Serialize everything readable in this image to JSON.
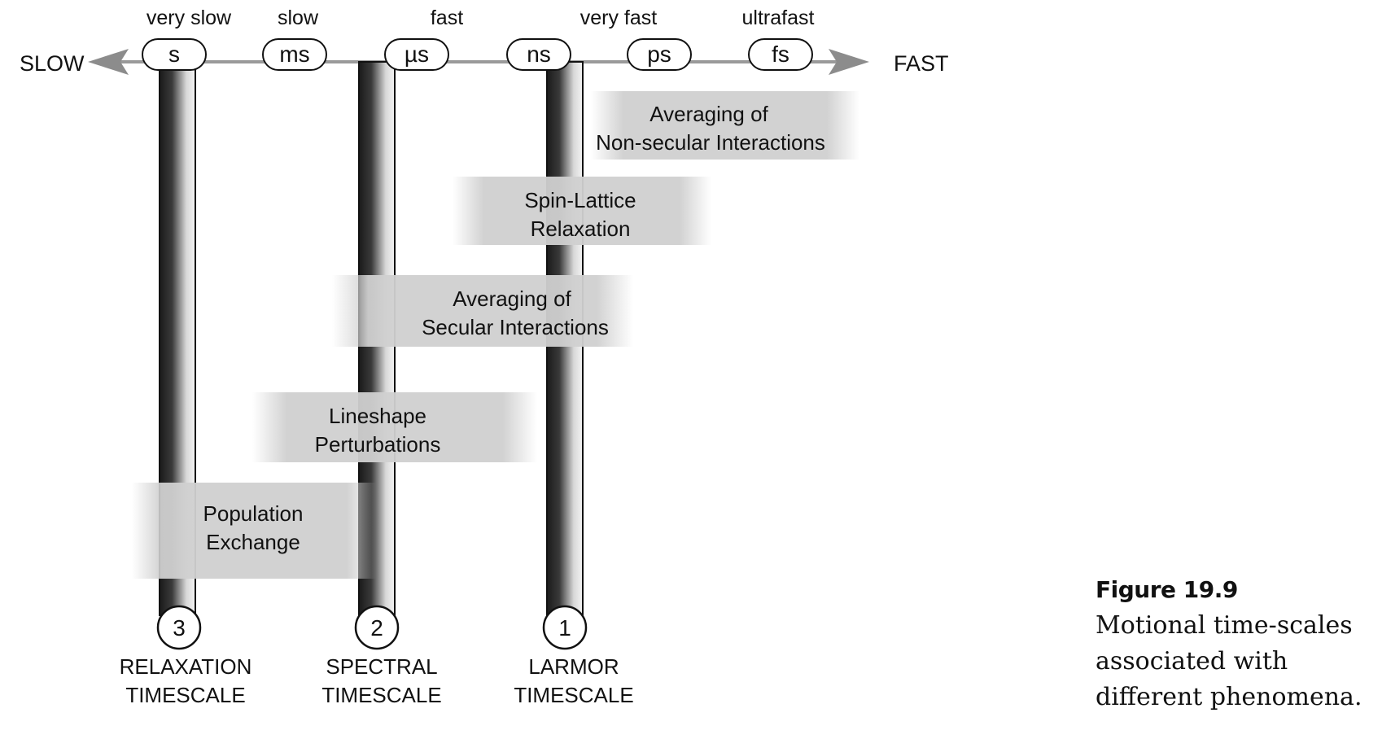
{
  "axis": {
    "left_label": "SLOW",
    "right_label": "FAST",
    "speed_labels": [
      "very slow",
      "slow",
      "fast",
      "very fast",
      "ultrafast"
    ],
    "units": [
      "s",
      "ms",
      "µs",
      "ns",
      "ps",
      "fs"
    ]
  },
  "timescales": [
    {
      "number": "3",
      "line1": "RELAXATION",
      "line2": "TIMESCALE"
    },
    {
      "number": "2",
      "line1": "SPECTRAL",
      "line2": "TIMESCALE"
    },
    {
      "number": "1",
      "line1": "LARMOR",
      "line2": "TIMESCALE"
    }
  ],
  "phenomena": [
    {
      "line1": "Averaging of",
      "line2": "Non-secular Interactions"
    },
    {
      "line1": "Spin-Lattice",
      "line2": "Relaxation"
    },
    {
      "line1": "Averaging of",
      "line2": "Secular Interactions"
    },
    {
      "line1": "Lineshape",
      "line2": "Perturbations"
    },
    {
      "line1": "Population",
      "line2": "Exchange"
    }
  ],
  "caption": {
    "title": "Figure 19.9",
    "lines": [
      "Motional time-scales",
      "associated with",
      "different phenomena."
    ]
  }
}
